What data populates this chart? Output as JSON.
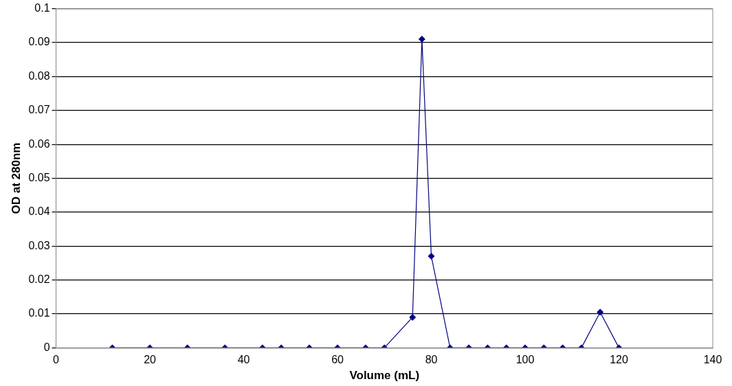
{
  "chart_data": {
    "type": "line",
    "xlabel": "Volume (mL)",
    "ylabel": "OD at 280nm",
    "x": [
      12,
      20,
      28,
      36,
      44,
      48,
      54,
      60,
      66,
      70,
      76,
      78,
      80,
      84,
      88,
      92,
      96,
      100,
      104,
      108,
      112,
      116,
      120
    ],
    "series": [
      {
        "color": "#000080",
        "values": [
          0,
          0,
          0,
          0,
          0,
          0,
          0,
          0,
          0,
          0,
          0.009,
          0.091,
          0.027,
          0,
          0,
          0,
          0,
          0,
          0,
          0,
          0,
          0.0105,
          0
        ]
      }
    ],
    "xlim": [
      0,
      140
    ],
    "xticks": [
      0,
      20,
      40,
      60,
      80,
      100,
      120,
      140
    ],
    "ylim": [
      0,
      0.1
    ],
    "yticks": [
      0,
      0.01,
      0.02,
      0.03,
      0.04,
      0.05,
      0.06,
      0.07,
      0.08,
      0.09,
      0.1
    ],
    "grid": "y",
    "legend": false,
    "marker": "diamond",
    "line_style": "solid"
  }
}
